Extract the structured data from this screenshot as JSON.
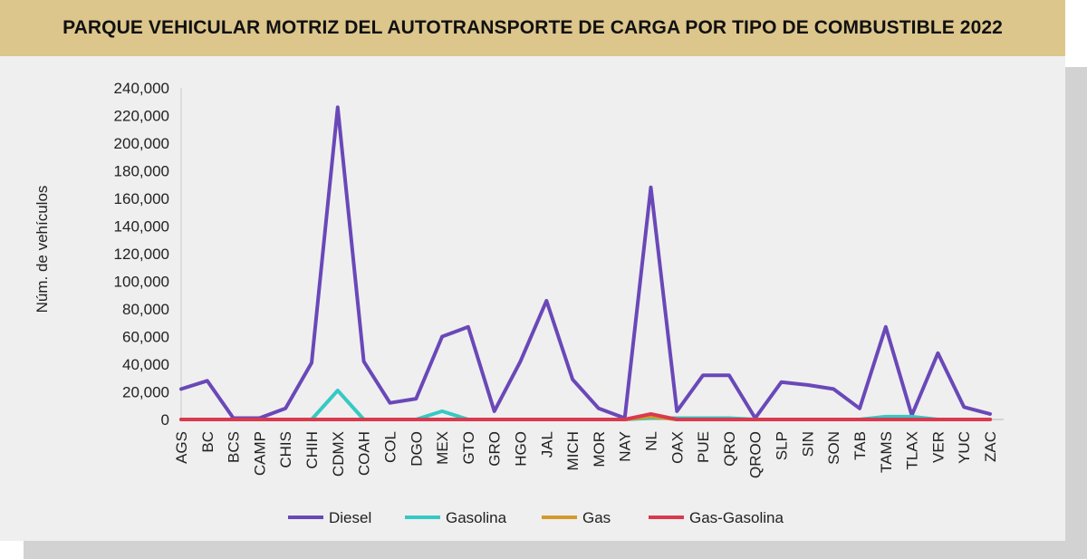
{
  "header": {
    "title": "PARQUE VEHICULAR MOTRIZ DEL AUTOTRANSPORTE DE CARGA POR TIPO DE COMBUSTIBLE 2022"
  },
  "chart_data": {
    "type": "line",
    "title": "PARQUE VEHICULAR MOTRIZ DEL AUTOTRANSPORTE DE CARGA POR TIPO DE COMBUSTIBLE 2022",
    "xlabel": "",
    "ylabel": "Núm. de vehículos",
    "ylim": [
      0,
      240000
    ],
    "yticks": [
      0,
      20000,
      40000,
      60000,
      80000,
      100000,
      120000,
      140000,
      160000,
      180000,
      200000,
      220000,
      240000
    ],
    "ytick_labels": [
      "0",
      "20,000",
      "40,000",
      "60,000",
      "80,000",
      "100,000",
      "120,000",
      "140,000",
      "160,000",
      "180,000",
      "200,000",
      "220,000",
      "240,000"
    ],
    "grid": false,
    "legend_position": "bottom",
    "categories": [
      "AGS",
      "BC",
      "BCS",
      "CAMP",
      "CHIS",
      "CHIH",
      "CDMX",
      "COAH",
      "COL",
      "DGO",
      "MEX",
      "GTO",
      "GRO",
      "HGO",
      "JAL",
      "MICH",
      "MOR",
      "NAY",
      "NL",
      "OAX",
      "PUE",
      "QRO",
      "QROO",
      "SLP",
      "SIN",
      "SON",
      "TAB",
      "TAMS",
      "TLAX",
      "VER",
      "YUC",
      "ZAC"
    ],
    "series": [
      {
        "name": "Diesel",
        "color": "#6a48b8",
        "values": [
          22000,
          28000,
          1000,
          1000,
          8000,
          41000,
          226000,
          42000,
          12000,
          15000,
          60000,
          67000,
          6000,
          42000,
          86000,
          29000,
          8000,
          1000,
          168000,
          6000,
          32000,
          32000,
          1000,
          27000,
          25000,
          22000,
          8000,
          67000,
          3000,
          48000,
          9000,
          4000
        ]
      },
      {
        "name": "Gasolina",
        "color": "#36c9c4",
        "values": [
          0,
          0,
          0,
          0,
          0,
          0,
          21000,
          0,
          0,
          0,
          6000,
          0,
          0,
          0,
          0,
          0,
          0,
          0,
          1000,
          1000,
          1000,
          1000,
          0,
          0,
          0,
          0,
          0,
          2000,
          2000,
          0,
          0,
          0
        ]
      },
      {
        "name": "Gas",
        "color": "#d49a2a",
        "values": [
          0,
          0,
          0,
          0,
          0,
          0,
          0,
          0,
          0,
          0,
          0,
          0,
          0,
          0,
          0,
          0,
          0,
          0,
          2000,
          0,
          0,
          0,
          0,
          0,
          0,
          0,
          0,
          0,
          0,
          0,
          0,
          0
        ]
      },
      {
        "name": "Gas-Gasolina",
        "color": "#d83a4f",
        "values": [
          0,
          0,
          0,
          0,
          0,
          0,
          0,
          0,
          0,
          0,
          0,
          0,
          0,
          0,
          0,
          0,
          0,
          0,
          4000,
          0,
          0,
          0,
          0,
          0,
          0,
          0,
          0,
          0,
          0,
          0,
          0,
          0
        ]
      }
    ]
  }
}
